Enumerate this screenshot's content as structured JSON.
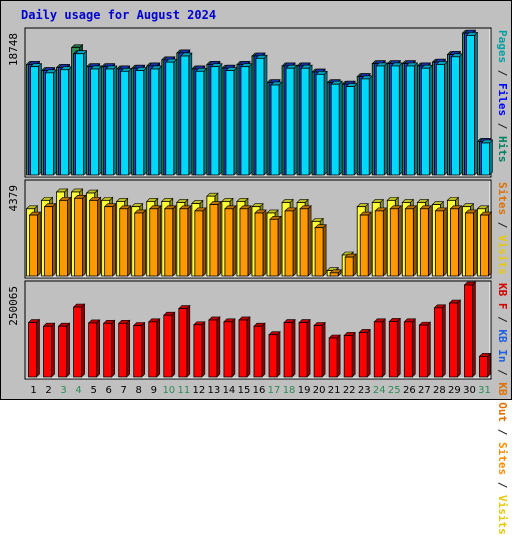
{
  "title": "Daily usage for August 2024",
  "chart_data": {
    "type": "bar",
    "title": "Daily usage for August 2024",
    "categories": [
      "1",
      "2",
      "3",
      "4",
      "5",
      "6",
      "7",
      "8",
      "9",
      "10",
      "11",
      "12",
      "13",
      "14",
      "15",
      "16",
      "17",
      "18",
      "19",
      "20",
      "21",
      "22",
      "23",
      "24",
      "25",
      "26",
      "27",
      "28",
      "29",
      "30",
      "31"
    ],
    "weekend_days": [
      "3",
      "4",
      "10",
      "11",
      "17",
      "18",
      "24",
      "25",
      "31"
    ],
    "panels": [
      {
        "name": "traffic",
        "ymax_label": "18748",
        "ymax": 18748,
        "legend": [
          {
            "text": "Pages",
            "color": "#00a0a0"
          },
          {
            "text": " / ",
            "color": "#202020"
          },
          {
            "text": "Files",
            "color": "#0000ff"
          },
          {
            "text": " / ",
            "color": "#202020"
          },
          {
            "text": "Hits",
            "color": "#008060"
          }
        ],
        "series": [
          {
            "name": "Hits",
            "color": "#2e8b57",
            "values": [
              14500,
              13700,
              14100,
              16700,
              14200,
              14200,
              13900,
              14000,
              14300,
              15100,
              16000,
              13900,
              14500,
              14000,
              14500,
              15600,
              12100,
              14300,
              14300,
              13500,
              12100,
              11900,
              12900,
              14600,
              14600,
              14600,
              14300,
              14800,
              15800,
              18600,
              4400
            ]
          },
          {
            "name": "Files",
            "color": "#2040e0",
            "values": [
              14500,
              13700,
              14100,
              15900,
              14200,
              14200,
              13900,
              14000,
              14300,
              15100,
              16000,
              13900,
              14500,
              14000,
              14500,
              15600,
              12100,
              14300,
              14300,
              13500,
              12100,
              11900,
              12900,
              14600,
              14600,
              14600,
              14300,
              14800,
              15800,
              18600,
              4400
            ]
          },
          {
            "name": "Pages",
            "color": "#00d8f8",
            "values": [
              14200,
              13400,
              13800,
              15900,
              13900,
              13900,
              13600,
              13700,
              13900,
              14800,
              15600,
              13600,
              14200,
              13700,
              14200,
              15300,
              11800,
              14000,
              14000,
              13200,
              11900,
              11600,
              12600,
              14300,
              14300,
              14300,
              14000,
              14500,
              15500,
              18300,
              4200
            ]
          }
        ]
      },
      {
        "name": "visits",
        "ymax_label": "4379",
        "ymax": 4379,
        "legend": [
          {
            "text": "Sites",
            "color": "#e07000"
          },
          {
            "text": " / ",
            "color": "#202020"
          },
          {
            "text": "Visits",
            "color": "#e8c800"
          }
        ],
        "series": [
          {
            "name": "Visits",
            "color": "#ffff33",
            "values": [
              3200,
              3600,
              4000,
              4000,
              3950,
              3600,
              3550,
              3300,
              3550,
              3550,
              3500,
              3450,
              3800,
              3550,
              3550,
              3300,
              3000,
              3500,
              3500,
              2600,
              260,
              1000,
              3300,
              3500,
              3600,
              3500,
              3500,
              3400,
              3600,
              3300,
              3200
            ]
          },
          {
            "name": "Sites",
            "color": "#ff9900",
            "values": [
              2900,
              3300,
              3600,
              3700,
              3600,
              3300,
              3200,
              3000,
              3200,
              3200,
              3200,
              3100,
              3400,
              3200,
              3200,
              3000,
              2700,
              3100,
              3200,
              2300,
              150,
              900,
              2900,
              3100,
              3200,
              3200,
              3200,
              3100,
              3200,
              3000,
              2900
            ]
          }
        ]
      },
      {
        "name": "kbytes",
        "ymax_label": "250065",
        "ymax": 250065,
        "legend": [
          {
            "text": "KB F",
            "color": "#d00000"
          },
          {
            "text": " / ",
            "color": "#202020"
          },
          {
            "text": "KB In",
            "color": "#2060e0"
          },
          {
            "text": " / ",
            "color": "#202020"
          },
          {
            "text": "KB Out",
            "color": "#e07000"
          },
          {
            "text": " / ",
            "color": "#202020"
          },
          {
            "text": "Sites",
            "color": "#ff8c00"
          },
          {
            "text": " / ",
            "color": "#202020"
          },
          {
            "text": "Visits",
            "color": "#e8c800"
          }
        ],
        "series": [
          {
            "name": "KB F",
            "color": "#ff0000",
            "values": [
              148000,
              138000,
              138000,
              190000,
              147000,
              146000,
              146000,
              140000,
              150000,
              168000,
              186000,
              142000,
              155000,
              150000,
              155000,
              138000,
              115000,
              148000,
              148000,
              140000,
              106000,
              113000,
              121000,
              150000,
              151000,
              150000,
              141000,
              188000,
              201000,
              250000,
              56000
            ]
          }
        ]
      }
    ]
  }
}
